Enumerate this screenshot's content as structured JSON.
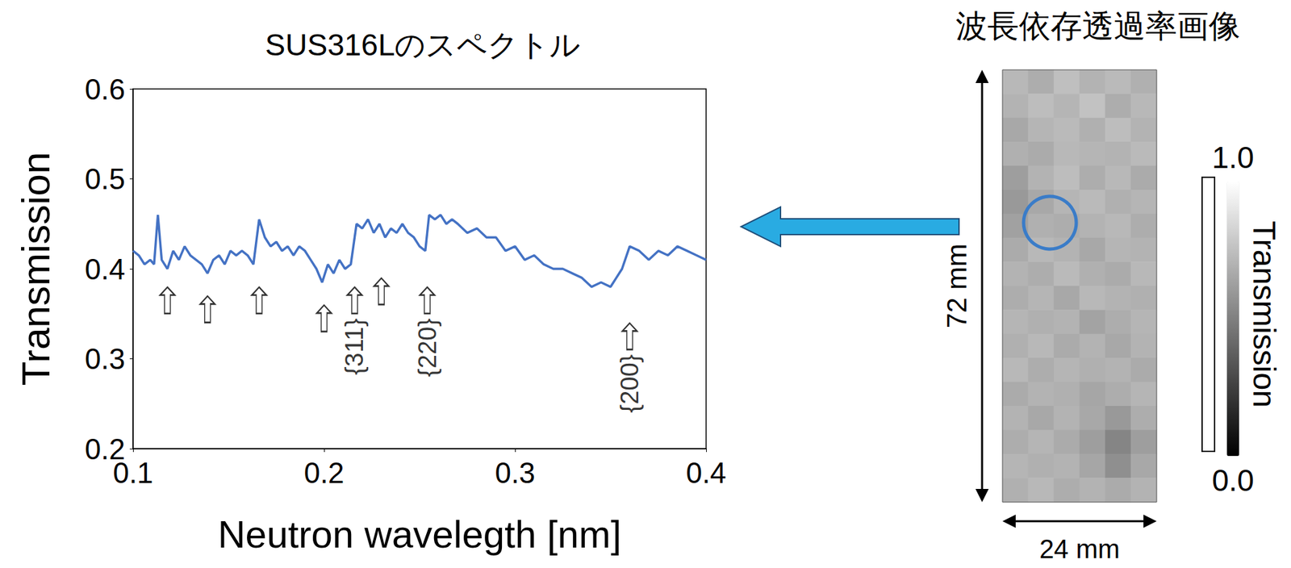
{
  "chart_data": [
    {
      "type": "line",
      "title": "SUS316Lのスペクトル",
      "x_label": "Neutron wavelegth [nm]",
      "y_label": "Transmission",
      "x": [
        0.1,
        0.103,
        0.106,
        0.109,
        0.111,
        0.113,
        0.115,
        0.118,
        0.121,
        0.124,
        0.127,
        0.13,
        0.133,
        0.136,
        0.139,
        0.142,
        0.145,
        0.148,
        0.151,
        0.154,
        0.157,
        0.16,
        0.163,
        0.166,
        0.169,
        0.172,
        0.175,
        0.178,
        0.181,
        0.184,
        0.187,
        0.19,
        0.193,
        0.196,
        0.199,
        0.202,
        0.205,
        0.208,
        0.211,
        0.214,
        0.217,
        0.22,
        0.223,
        0.226,
        0.229,
        0.232,
        0.235,
        0.238,
        0.241,
        0.244,
        0.247,
        0.25,
        0.253,
        0.255,
        0.258,
        0.261,
        0.264,
        0.267,
        0.27,
        0.275,
        0.28,
        0.285,
        0.29,
        0.295,
        0.3,
        0.305,
        0.31,
        0.315,
        0.32,
        0.325,
        0.33,
        0.335,
        0.34,
        0.345,
        0.35,
        0.353,
        0.356,
        0.36,
        0.365,
        0.37,
        0.375,
        0.38,
        0.385,
        0.39,
        0.395,
        0.4
      ],
      "values": [
        0.42,
        0.415,
        0.405,
        0.41,
        0.405,
        0.46,
        0.41,
        0.4,
        0.42,
        0.41,
        0.425,
        0.415,
        0.41,
        0.405,
        0.395,
        0.41,
        0.415,
        0.405,
        0.42,
        0.415,
        0.42,
        0.415,
        0.405,
        0.455,
        0.435,
        0.425,
        0.43,
        0.42,
        0.425,
        0.415,
        0.425,
        0.42,
        0.41,
        0.4,
        0.385,
        0.405,
        0.395,
        0.41,
        0.4,
        0.405,
        0.45,
        0.445,
        0.455,
        0.44,
        0.45,
        0.435,
        0.445,
        0.44,
        0.45,
        0.44,
        0.435,
        0.425,
        0.42,
        0.46,
        0.455,
        0.46,
        0.45,
        0.455,
        0.45,
        0.44,
        0.445,
        0.435,
        0.435,
        0.42,
        0.425,
        0.41,
        0.415,
        0.405,
        0.4,
        0.4,
        0.395,
        0.39,
        0.38,
        0.385,
        0.38,
        0.39,
        0.4,
        0.425,
        0.42,
        0.41,
        0.42,
        0.415,
        0.425,
        0.42,
        0.415,
        0.41
      ],
      "color": "#4472c4",
      "xlim": [
        0.1,
        0.4
      ],
      "xticks": [
        0.1,
        0.2,
        0.3,
        0.4
      ],
      "ylim": [
        0.2,
        0.6
      ],
      "yticks": [
        0.2,
        0.3,
        0.4,
        0.5,
        0.6
      ],
      "grid": false,
      "annotations": [
        {
          "x": 0.118,
          "y": 0.365
        },
        {
          "x": 0.139,
          "y": 0.355
        },
        {
          "x": 0.166,
          "y": 0.365
        },
        {
          "x": 0.2,
          "y": 0.345
        },
        {
          "x": 0.216,
          "y": 0.365,
          "label": "{311}"
        },
        {
          "x": 0.23,
          "y": 0.375
        },
        {
          "x": 0.254,
          "y": 0.365,
          "label": "{220}"
        },
        {
          "x": 0.36,
          "y": 0.325,
          "label": "{200}"
        }
      ]
    },
    {
      "type": "heatmap",
      "title": "波長依存透過率画像",
      "tick_labels": false,
      "grid": false,
      "annotations": [
        {
          "text": "72 mm",
          "side": "left"
        },
        {
          "text": "24 mm",
          "side": "bottom"
        }
      ],
      "cells": [
        [
          0.72,
          0.68,
          0.75,
          0.7,
          0.73,
          0.69
        ],
        [
          0.7,
          0.74,
          0.71,
          0.76,
          0.68,
          0.72
        ],
        [
          0.66,
          0.71,
          0.73,
          0.69,
          0.74,
          0.7
        ],
        [
          0.69,
          0.67,
          0.72,
          0.71,
          0.7,
          0.73
        ],
        [
          0.62,
          0.7,
          0.74,
          0.68,
          0.72,
          0.67
        ],
        [
          0.6,
          0.66,
          0.71,
          0.73,
          0.69,
          0.71
        ],
        [
          0.63,
          0.69,
          0.68,
          0.7,
          0.72,
          0.68
        ],
        [
          0.67,
          0.72,
          0.7,
          0.66,
          0.71,
          0.7
        ],
        [
          0.7,
          0.68,
          0.73,
          0.69,
          0.67,
          0.72
        ],
        [
          0.68,
          0.71,
          0.66,
          0.72,
          0.7,
          0.69
        ],
        [
          0.71,
          0.69,
          0.7,
          0.64,
          0.68,
          0.71
        ],
        [
          0.69,
          0.72,
          0.67,
          0.7,
          0.66,
          0.7
        ],
        [
          0.72,
          0.68,
          0.71,
          0.69,
          0.7,
          0.67
        ],
        [
          0.67,
          0.7,
          0.69,
          0.65,
          0.68,
          0.71
        ],
        [
          0.7,
          0.66,
          0.7,
          0.66,
          0.6,
          0.68
        ],
        [
          0.68,
          0.71,
          0.67,
          0.62,
          0.52,
          0.62
        ],
        [
          0.71,
          0.69,
          0.7,
          0.65,
          0.56,
          0.66
        ],
        [
          0.69,
          0.72,
          0.68,
          0.7,
          0.67,
          0.7
        ]
      ],
      "colorbar": {
        "range": [
          0,
          1
        ],
        "ticks": [
          {
            "value": 0,
            "label": "0.0"
          },
          {
            "value": 1,
            "label": "1.0"
          }
        ],
        "label": "Transmission"
      }
    }
  ]
}
